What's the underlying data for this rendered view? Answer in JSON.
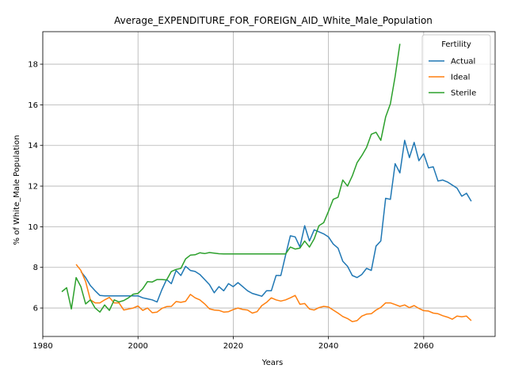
{
  "chart_data": {
    "type": "line",
    "title": "Average_EXPENDITURE_FOR_FOREIGN_AID_White_Male_Population",
    "xlabel": "Years",
    "ylabel": "% of White_Male Population",
    "xlim": [
      1980,
      2075
    ],
    "ylim": [
      4.6,
      19.6
    ],
    "xticks": [
      1980,
      2000,
      2020,
      2040,
      2060
    ],
    "yticks": [
      6,
      8,
      10,
      12,
      14,
      16,
      18
    ],
    "grid": true,
    "legend": {
      "title": "Fertility",
      "placement": "top-right"
    },
    "series": [
      {
        "name": "Actual",
        "color": "#1f77b4",
        "x": [
          1988,
          1989,
          1990,
          1991,
          1992,
          1993,
          1994,
          1995,
          1996,
          1997,
          1998,
          1999,
          2000,
          2001,
          2002,
          2003,
          2004,
          2005,
          2006,
          2007,
          2008,
          2009,
          2010,
          2011,
          2012,
          2013,
          2014,
          2015,
          2016,
          2017,
          2018,
          2019,
          2020,
          2021,
          2022,
          2023,
          2024,
          2025,
          2026,
          2027,
          2028,
          2029,
          2030,
          2031,
          2032,
          2033,
          2034,
          2035,
          2036,
          2037,
          2038,
          2039,
          2040,
          2041,
          2042,
          2043,
          2044,
          2045,
          2046,
          2047,
          2048,
          2049,
          2050,
          2051,
          2052,
          2053,
          2054,
          2055,
          2056,
          2057,
          2058,
          2059,
          2060,
          2061,
          2062,
          2063,
          2064,
          2065,
          2066,
          2067,
          2068,
          2069,
          2070
        ],
        "y": [
          7.8,
          7.5,
          7.1,
          6.85,
          6.62,
          6.6,
          6.6,
          6.6,
          6.6,
          6.6,
          6.6,
          6.6,
          6.6,
          6.5,
          6.45,
          6.4,
          6.3,
          6.9,
          7.4,
          7.2,
          7.85,
          7.6,
          8.05,
          7.85,
          7.8,
          7.65,
          7.4,
          7.15,
          6.75,
          7.05,
          6.85,
          7.2,
          7.05,
          7.25,
          7.05,
          6.85,
          6.72,
          6.65,
          6.58,
          6.85,
          6.85,
          7.6,
          7.6,
          8.6,
          9.55,
          9.5,
          9.0,
          10.05,
          9.3,
          9.85,
          9.75,
          9.65,
          9.5,
          9.15,
          8.95,
          8.3,
          8.05,
          7.6,
          7.5,
          7.65,
          7.95,
          7.85,
          9.05,
          9.3,
          11.4,
          11.35,
          13.1,
          12.65,
          14.25,
          13.4,
          14.15,
          13.25,
          13.6,
          12.9,
          12.95,
          12.25,
          12.3,
          12.2,
          12.05,
          11.9,
          11.5,
          11.65,
          11.25
        ]
      },
      {
        "name": "Ideal",
        "color": "#ff7f0e",
        "x": [
          1987,
          1988,
          1989,
          1990,
          1991,
          1992,
          1993,
          1994,
          1995,
          1996,
          1997,
          1998,
          1999,
          2000,
          2001,
          2002,
          2003,
          2004,
          2005,
          2006,
          2007,
          2008,
          2009,
          2010,
          2011,
          2012,
          2013,
          2014,
          2015,
          2016,
          2017,
          2018,
          2019,
          2020,
          2021,
          2022,
          2023,
          2024,
          2025,
          2026,
          2027,
          2028,
          2029,
          2030,
          2031,
          2032,
          2033,
          2034,
          2035,
          2036,
          2037,
          2038,
          2039,
          2040,
          2041,
          2042,
          2043,
          2044,
          2045,
          2046,
          2047,
          2048,
          2049,
          2050,
          2051,
          2052,
          2053,
          2054,
          2055,
          2056,
          2057,
          2058,
          2059,
          2060,
          2061,
          2062,
          2063,
          2064,
          2065,
          2066,
          2067,
          2068,
          2069,
          2070
        ],
        "y": [
          8.15,
          7.85,
          7.3,
          6.4,
          6.25,
          6.25,
          6.4,
          6.52,
          6.25,
          6.25,
          5.9,
          5.95,
          6.0,
          6.1,
          5.88,
          6.0,
          5.77,
          5.8,
          5.98,
          6.07,
          6.08,
          6.32,
          6.28,
          6.33,
          6.67,
          6.5,
          6.4,
          6.2,
          5.96,
          5.9,
          5.88,
          5.8,
          5.82,
          5.92,
          6.0,
          5.93,
          5.9,
          5.75,
          5.82,
          6.12,
          6.28,
          6.5,
          6.4,
          6.34,
          6.4,
          6.5,
          6.62,
          6.18,
          6.22,
          5.95,
          5.9,
          6.02,
          6.08,
          6.05,
          5.9,
          5.75,
          5.58,
          5.48,
          5.33,
          5.38,
          5.6,
          5.7,
          5.72,
          5.9,
          6.03,
          6.25,
          6.25,
          6.17,
          6.08,
          6.15,
          6.02,
          6.12,
          5.98,
          5.87,
          5.85,
          5.75,
          5.72,
          5.62,
          5.55,
          5.45,
          5.6,
          5.57,
          5.6,
          5.38
        ]
      },
      {
        "name": "Sterile",
        "color": "#2ca02c",
        "x": [
          1984,
          1985,
          1986,
          1987,
          1988,
          1989,
          1990,
          1991,
          1992,
          1993,
          1994,
          1995,
          1996,
          1997,
          1998,
          1999,
          2000,
          2001,
          2002,
          2003,
          2004,
          2005,
          2006,
          2007,
          2008,
          2009,
          2010,
          2011,
          2012,
          2013,
          2014,
          2015,
          2016,
          2017,
          2018,
          2019,
          2020,
          2021,
          2022,
          2023,
          2024,
          2025,
          2026,
          2027,
          2028,
          2029,
          2030,
          2031,
          2032,
          2033,
          2034,
          2035,
          2036,
          2037,
          2038,
          2039,
          2040,
          2041,
          2042,
          2043,
          2044,
          2045,
          2046,
          2047,
          2048,
          2049,
          2050,
          2051,
          2052,
          2053,
          2054,
          2055
        ],
        "y": [
          6.8,
          7.0,
          5.95,
          7.5,
          7.05,
          6.2,
          6.4,
          6.0,
          5.8,
          6.15,
          5.88,
          6.4,
          6.3,
          6.37,
          6.5,
          6.68,
          6.72,
          6.95,
          7.3,
          7.28,
          7.4,
          7.4,
          7.38,
          7.8,
          7.9,
          7.95,
          8.42,
          8.6,
          8.62,
          8.72,
          8.68,
          8.73,
          8.7,
          8.67,
          8.66,
          8.66,
          8.66,
          8.66,
          8.66,
          8.66,
          8.66,
          8.66,
          8.66,
          8.66,
          8.66,
          8.66,
          8.66,
          8.66,
          9.0,
          8.9,
          8.95,
          9.3,
          9.0,
          9.4,
          10.05,
          10.2,
          10.75,
          11.35,
          11.45,
          12.3,
          12.0,
          12.5,
          13.15,
          13.5,
          13.9,
          14.55,
          14.65,
          14.25,
          15.4,
          16.05,
          17.4,
          19.0
        ]
      }
    ]
  }
}
